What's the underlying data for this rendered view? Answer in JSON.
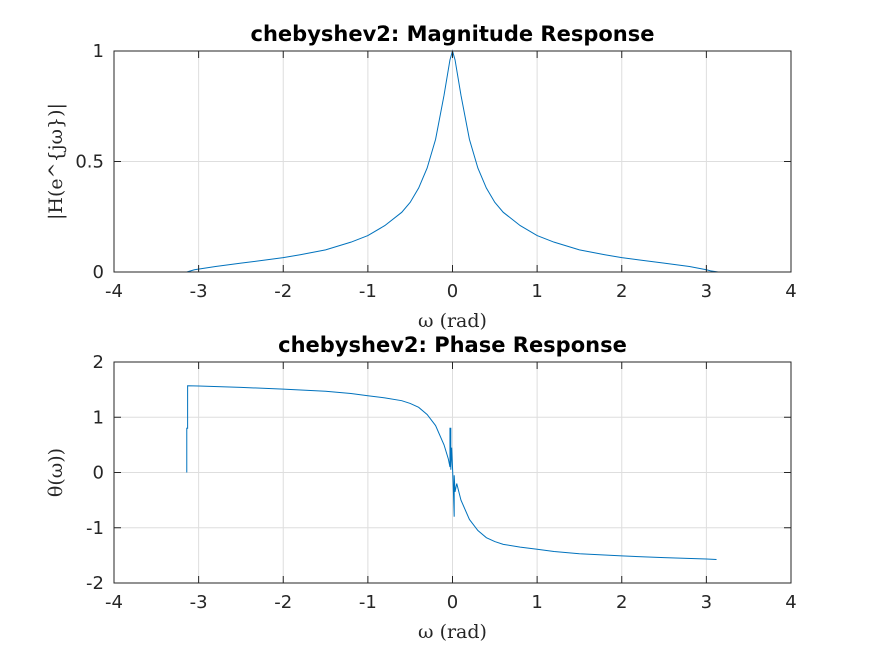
{
  "chart_data": [
    {
      "type": "line",
      "title": "chebyshev2: Magnitude Response",
      "xlabel": "ω (rad)",
      "ylabel": "|H(e^{jω})|",
      "xlim": [
        -4,
        4
      ],
      "ylim": [
        0,
        1
      ],
      "xticks": [
        "-4",
        "-3",
        "-2",
        "-1",
        "0",
        "1",
        "2",
        "3",
        "4"
      ],
      "yticks": [
        "0",
        "0.5",
        "1"
      ],
      "grid": true,
      "series": [
        {
          "x": [
            -3.14,
            -3.05,
            -2.8,
            -2.5,
            -2.2,
            -2.0,
            -1.8,
            -1.5,
            -1.2,
            -1.0,
            -0.8,
            -0.6,
            -0.5,
            -0.4,
            -0.3,
            -0.2,
            -0.1,
            -0.03,
            0.0,
            0.03,
            0.1,
            0.2,
            0.3,
            0.4,
            0.5,
            0.6,
            0.8,
            1.0,
            1.2,
            1.5,
            1.8,
            2.0,
            2.2,
            2.5,
            2.8,
            3.0,
            3.05,
            3.14
          ],
          "y": [
            0.0,
            0.01,
            0.025,
            0.04,
            0.055,
            0.065,
            0.078,
            0.1,
            0.135,
            0.165,
            0.21,
            0.27,
            0.315,
            0.38,
            0.47,
            0.6,
            0.8,
            0.96,
            1.0,
            0.96,
            0.8,
            0.6,
            0.47,
            0.38,
            0.315,
            0.27,
            0.21,
            0.165,
            0.135,
            0.1,
            0.078,
            0.065,
            0.055,
            0.04,
            0.025,
            0.01,
            0.005,
            0.0
          ]
        }
      ]
    },
    {
      "type": "line",
      "title": "chebyshev2: Phase Response",
      "xlabel": "ω (rad)",
      "ylabel": "θ(ω))",
      "xlim": [
        -4,
        4
      ],
      "ylim": [
        -2,
        2
      ],
      "xticks": [
        "-4",
        "-3",
        "-2",
        "-1",
        "0",
        "1",
        "2",
        "3",
        "4"
      ],
      "yticks": [
        "-2",
        "-1",
        "0",
        "1",
        "2"
      ],
      "grid": true,
      "series": [
        {
          "x": [
            -3.14,
            -3.14,
            -3.13,
            -3.13,
            -3.0,
            -2.5,
            -2.0,
            -1.5,
            -1.2,
            -1.0,
            -0.8,
            -0.6,
            -0.5,
            -0.4,
            -0.3,
            -0.2,
            -0.1,
            -0.05,
            -0.03,
            -0.03,
            -0.02,
            -0.02,
            -0.01,
            0.0,
            0.01,
            0.02,
            0.02,
            0.03,
            0.05,
            0.1,
            0.2,
            0.3,
            0.4,
            0.5,
            0.6,
            0.8,
            1.0,
            1.2,
            1.5,
            2.0,
            2.5,
            3.0,
            3.12
          ],
          "y": [
            0.0,
            0.8,
            0.8,
            1.57,
            1.565,
            1.54,
            1.51,
            1.47,
            1.43,
            1.39,
            1.35,
            1.3,
            1.25,
            1.18,
            1.05,
            0.85,
            0.5,
            0.25,
            0.1,
            0.8,
            0.8,
            0.05,
            0.45,
            0.1,
            -0.3,
            -0.8,
            -0.05,
            -0.35,
            -0.2,
            -0.5,
            -0.85,
            -1.05,
            -1.18,
            -1.25,
            -1.3,
            -1.35,
            -1.39,
            -1.43,
            -1.47,
            -1.51,
            -1.54,
            -1.565,
            -1.575
          ]
        }
      ]
    }
  ]
}
